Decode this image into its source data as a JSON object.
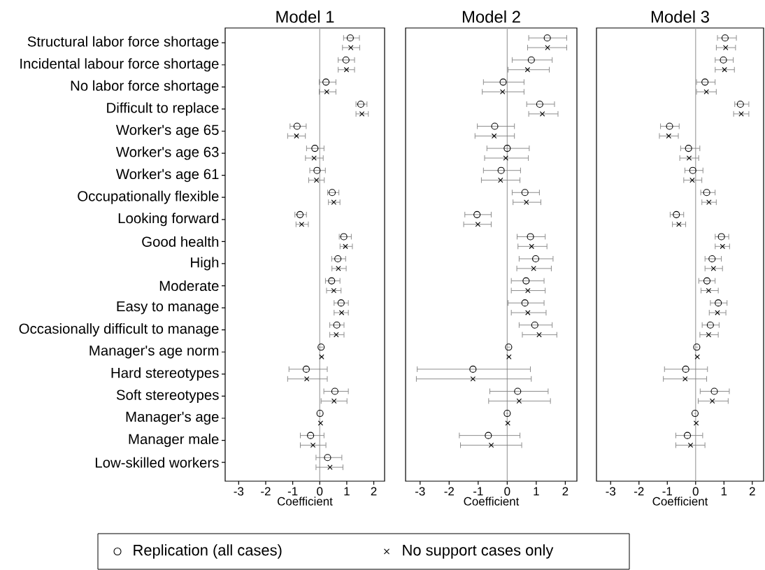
{
  "chart_data": [
    {
      "type": "scatter",
      "orientation": "horizontal",
      "title": "Model 1",
      "xlabel": "Coefficient",
      "categories": [
        "Structural labor force shortage",
        "Incidental labour force shortage",
        "No labor force shortage",
        "Difficult to replace",
        "Worker's age 65",
        "Worker's age 63",
        "Worker's age 61",
        "Occupationally flexible",
        "Looking forward",
        "Good health",
        "High",
        "Moderate",
        "Easy to manage",
        "Occasionally difficult to manage",
        "Manager's age norm",
        "Hard stereotypes",
        "Soft stereotypes",
        "Manager's age",
        "Manager male",
        "Low-skilled workers"
      ],
      "xlim": [
        -3.5,
        2.4
      ],
      "xticks": [
        -3,
        -2,
        -1,
        0,
        1,
        2
      ],
      "legend": "bottom",
      "ref_lines": [
        {
          "axis": "x",
          "value": 0,
          "color": "#a0a0a0"
        }
      ],
      "series": [
        {
          "name": "Replication (all cases)",
          "color": "#000000",
          "marker": "circle",
          "values": [
            1.13,
            0.97,
            0.23,
            1.52,
            -0.84,
            -0.18,
            -0.1,
            0.46,
            -0.73,
            0.89,
            0.67,
            0.44,
            0.79,
            0.63,
            0.05,
            -0.5,
            0.56,
            0.01,
            -0.34,
            0.29
          ],
          "errors": [
            [
              0.87,
              1.48
            ],
            [
              0.67,
              1.3
            ],
            [
              -0.03,
              0.61
            ],
            [
              1.33,
              1.76
            ],
            [
              -1.11,
              -0.49
            ],
            [
              -0.5,
              0.17
            ],
            [
              -0.38,
              0.22
            ],
            [
              0.28,
              0.72
            ],
            [
              -0.93,
              -0.48
            ],
            [
              0.71,
              1.18
            ],
            [
              0.43,
              0.97
            ],
            [
              0.2,
              0.76
            ],
            [
              0.52,
              1.07
            ],
            [
              0.36,
              0.91
            ],
            [
              -0.03,
              0.13
            ],
            [
              -1.15,
              0.29
            ],
            [
              0.14,
              1.07
            ],
            [
              -0.02,
              0.03
            ],
            [
              -0.73,
              0.17
            ],
            [
              -0.15,
              0.83
            ]
          ]
        },
        {
          "name": "No support cases only",
          "color": "#000000",
          "marker": "cross",
          "values": [
            1.15,
            0.99,
            0.26,
            1.56,
            -0.86,
            -0.21,
            -0.12,
            0.52,
            -0.67,
            0.95,
            0.69,
            0.52,
            0.81,
            0.61,
            0.07,
            -0.48,
            0.53,
            0.03,
            -0.25,
            0.38
          ],
          "errors": [
            [
              0.83,
              1.49
            ],
            [
              0.67,
              1.3
            ],
            [
              -0.03,
              0.61
            ],
            [
              1.33,
              1.81
            ],
            [
              -1.2,
              -0.52
            ],
            [
              -0.54,
              0.14
            ],
            [
              -0.42,
              0.18
            ],
            [
              0.31,
              0.76
            ],
            [
              -0.89,
              -0.41
            ],
            [
              0.74,
              1.22
            ],
            [
              0.44,
              0.99
            ],
            [
              0.24,
              0.8
            ],
            [
              0.52,
              1.07
            ],
            [
              0.36,
              0.91
            ],
            [
              0.0,
              0.14
            ],
            [
              -1.2,
              0.29
            ],
            [
              0.04,
              1.02
            ],
            [
              0.0,
              0.06
            ],
            [
              -0.73,
              0.24
            ],
            [
              -0.15,
              0.87
            ]
          ]
        }
      ]
    },
    {
      "type": "scatter",
      "orientation": "horizontal",
      "title": "Model 2",
      "xlabel": "Coefficient",
      "tick_labels": "x",
      "categories": [
        null,
        null,
        null,
        null,
        null,
        null,
        null,
        null,
        null,
        null,
        null,
        null,
        null,
        null,
        null,
        null,
        null,
        null,
        null,
        null
      ],
      "xlim": [
        -3.5,
        2.4
      ],
      "xticks": [
        -3,
        -2,
        -1,
        0,
        1,
        2
      ],
      "ref_lines": [
        {
          "axis": "x",
          "value": 0,
          "color": "#a0a0a0"
        }
      ],
      "series": [
        {
          "color": "#000000",
          "marker": "circle",
          "values": [
            1.38,
            0.83,
            -0.14,
            1.12,
            -0.43,
            0.0,
            -0.21,
            0.61,
            -1.04,
            0.8,
            0.98,
            0.65,
            0.61,
            0.95,
            0.05,
            -1.18,
            0.36,
            0.0,
            -0.65,
            null
          ],
          "errors": [
            [
              0.73,
              2.06
            ],
            [
              0.16,
              1.56
            ],
            [
              -0.83,
              0.59
            ],
            [
              0.66,
              1.64
            ],
            [
              -1.04,
              0.26
            ],
            [
              -0.71,
              0.77
            ],
            [
              -0.83,
              0.47
            ],
            [
              0.16,
              1.12
            ],
            [
              -1.47,
              -0.54
            ],
            [
              0.33,
              1.32
            ],
            [
              0.4,
              1.59
            ],
            [
              0.13,
              1.28
            ],
            [
              0.02,
              1.28
            ],
            [
              0.4,
              1.56
            ],
            [
              0.0,
              0.1
            ],
            [
              -3.11,
              0.81
            ],
            [
              -0.61,
              1.42
            ],
            [
              -0.04,
              0.04
            ],
            [
              -1.66,
              0.45
            ],
            null
          ]
        },
        {
          "color": "#000000",
          "marker": "cross",
          "values": [
            1.39,
            0.7,
            -0.16,
            1.21,
            -0.45,
            -0.05,
            -0.23,
            0.66,
            -1.01,
            0.84,
            0.91,
            0.71,
            0.71,
            1.1,
            0.06,
            -1.18,
            0.41,
            0.02,
            -0.55,
            null
          ],
          "errors": [
            [
              0.69,
              2.06
            ],
            [
              0.02,
              1.46
            ],
            [
              -0.87,
              0.59
            ],
            [
              0.73,
              1.76
            ],
            [
              -1.12,
              0.26
            ],
            [
              -0.79,
              0.74
            ],
            [
              -0.9,
              0.45
            ],
            [
              0.19,
              1.17
            ],
            [
              -1.51,
              -0.54
            ],
            [
              0.36,
              1.38
            ],
            [
              0.32,
              1.53
            ],
            [
              0.13,
              1.32
            ],
            [
              0.13,
              1.35
            ],
            [
              0.51,
              1.72
            ],
            [
              0.01,
              0.11
            ],
            [
              -3.14,
              0.84
            ],
            [
              -0.65,
              1.5
            ],
            [
              -0.02,
              0.06
            ],
            [
              -1.62,
              0.51
            ],
            null
          ]
        }
      ]
    },
    {
      "type": "scatter",
      "orientation": "horizontal",
      "title": "Model 3",
      "xlabel": "Coefficient",
      "tick_labels": "x",
      "categories": [
        null,
        null,
        null,
        null,
        null,
        null,
        null,
        null,
        null,
        null,
        null,
        null,
        null,
        null,
        null,
        null,
        null,
        null,
        null,
        null
      ],
      "xlim": [
        -3.5,
        2.4
      ],
      "xticks": [
        -3,
        -2,
        -1,
        0,
        1,
        2
      ],
      "ref_lines": [
        {
          "axis": "x",
          "value": 0,
          "color": "#a0a0a0"
        }
      ],
      "series": [
        {
          "color": "#000000",
          "marker": "circle",
          "values": [
            1.04,
            0.98,
            0.33,
            1.58,
            -0.92,
            -0.25,
            -0.1,
            0.39,
            -0.68,
            0.91,
            0.58,
            0.4,
            0.8,
            0.52,
            0.04,
            -0.35,
            0.66,
            -0.02,
            -0.29,
            null
          ],
          "errors": [
            [
              0.76,
              1.45
            ],
            [
              0.68,
              1.34
            ],
            [
              0.02,
              0.7
            ],
            [
              1.37,
              1.89
            ],
            [
              -1.25,
              -0.57
            ],
            [
              -0.54,
              0.16
            ],
            [
              -0.39,
              0.27
            ],
            [
              0.17,
              0.7
            ],
            [
              -0.91,
              -0.41
            ],
            [
              0.68,
              1.18
            ],
            [
              0.32,
              0.92
            ],
            [
              0.1,
              0.7
            ],
            [
              0.51,
              1.12
            ],
            [
              0.22,
              0.84
            ],
            [
              0.0,
              0.08
            ],
            [
              -1.11,
              0.43
            ],
            [
              0.15,
              1.2
            ],
            [
              -0.05,
              0.01
            ],
            [
              -0.71,
              0.26
            ],
            null
          ]
        },
        {
          "color": "#000000",
          "marker": "cross",
          "values": [
            1.06,
            1.02,
            0.38,
            1.61,
            -0.95,
            -0.23,
            -0.12,
            0.47,
            -0.59,
            0.95,
            0.63,
            0.46,
            0.77,
            0.46,
            0.06,
            -0.37,
            0.59,
            0.02,
            -0.18,
            null
          ],
          "errors": [
            [
              0.72,
              1.42
            ],
            [
              0.68,
              1.38
            ],
            [
              0.02,
              0.74
            ],
            [
              1.33,
              1.89
            ],
            [
              -1.29,
              -0.6
            ],
            [
              -0.57,
              0.12
            ],
            [
              -0.43,
              0.23
            ],
            [
              0.21,
              0.74
            ],
            [
              -0.83,
              -0.34
            ],
            [
              0.68,
              1.21
            ],
            [
              0.32,
              0.96
            ],
            [
              0.18,
              0.81
            ],
            [
              0.47,
              1.08
            ],
            [
              0.14,
              0.81
            ],
            [
              0.02,
              0.1
            ],
            [
              -1.15,
              0.4
            ],
            [
              0.08,
              1.16
            ],
            [
              -0.01,
              0.05
            ],
            [
              -0.71,
              0.34
            ],
            null
          ]
        }
      ]
    }
  ]
}
